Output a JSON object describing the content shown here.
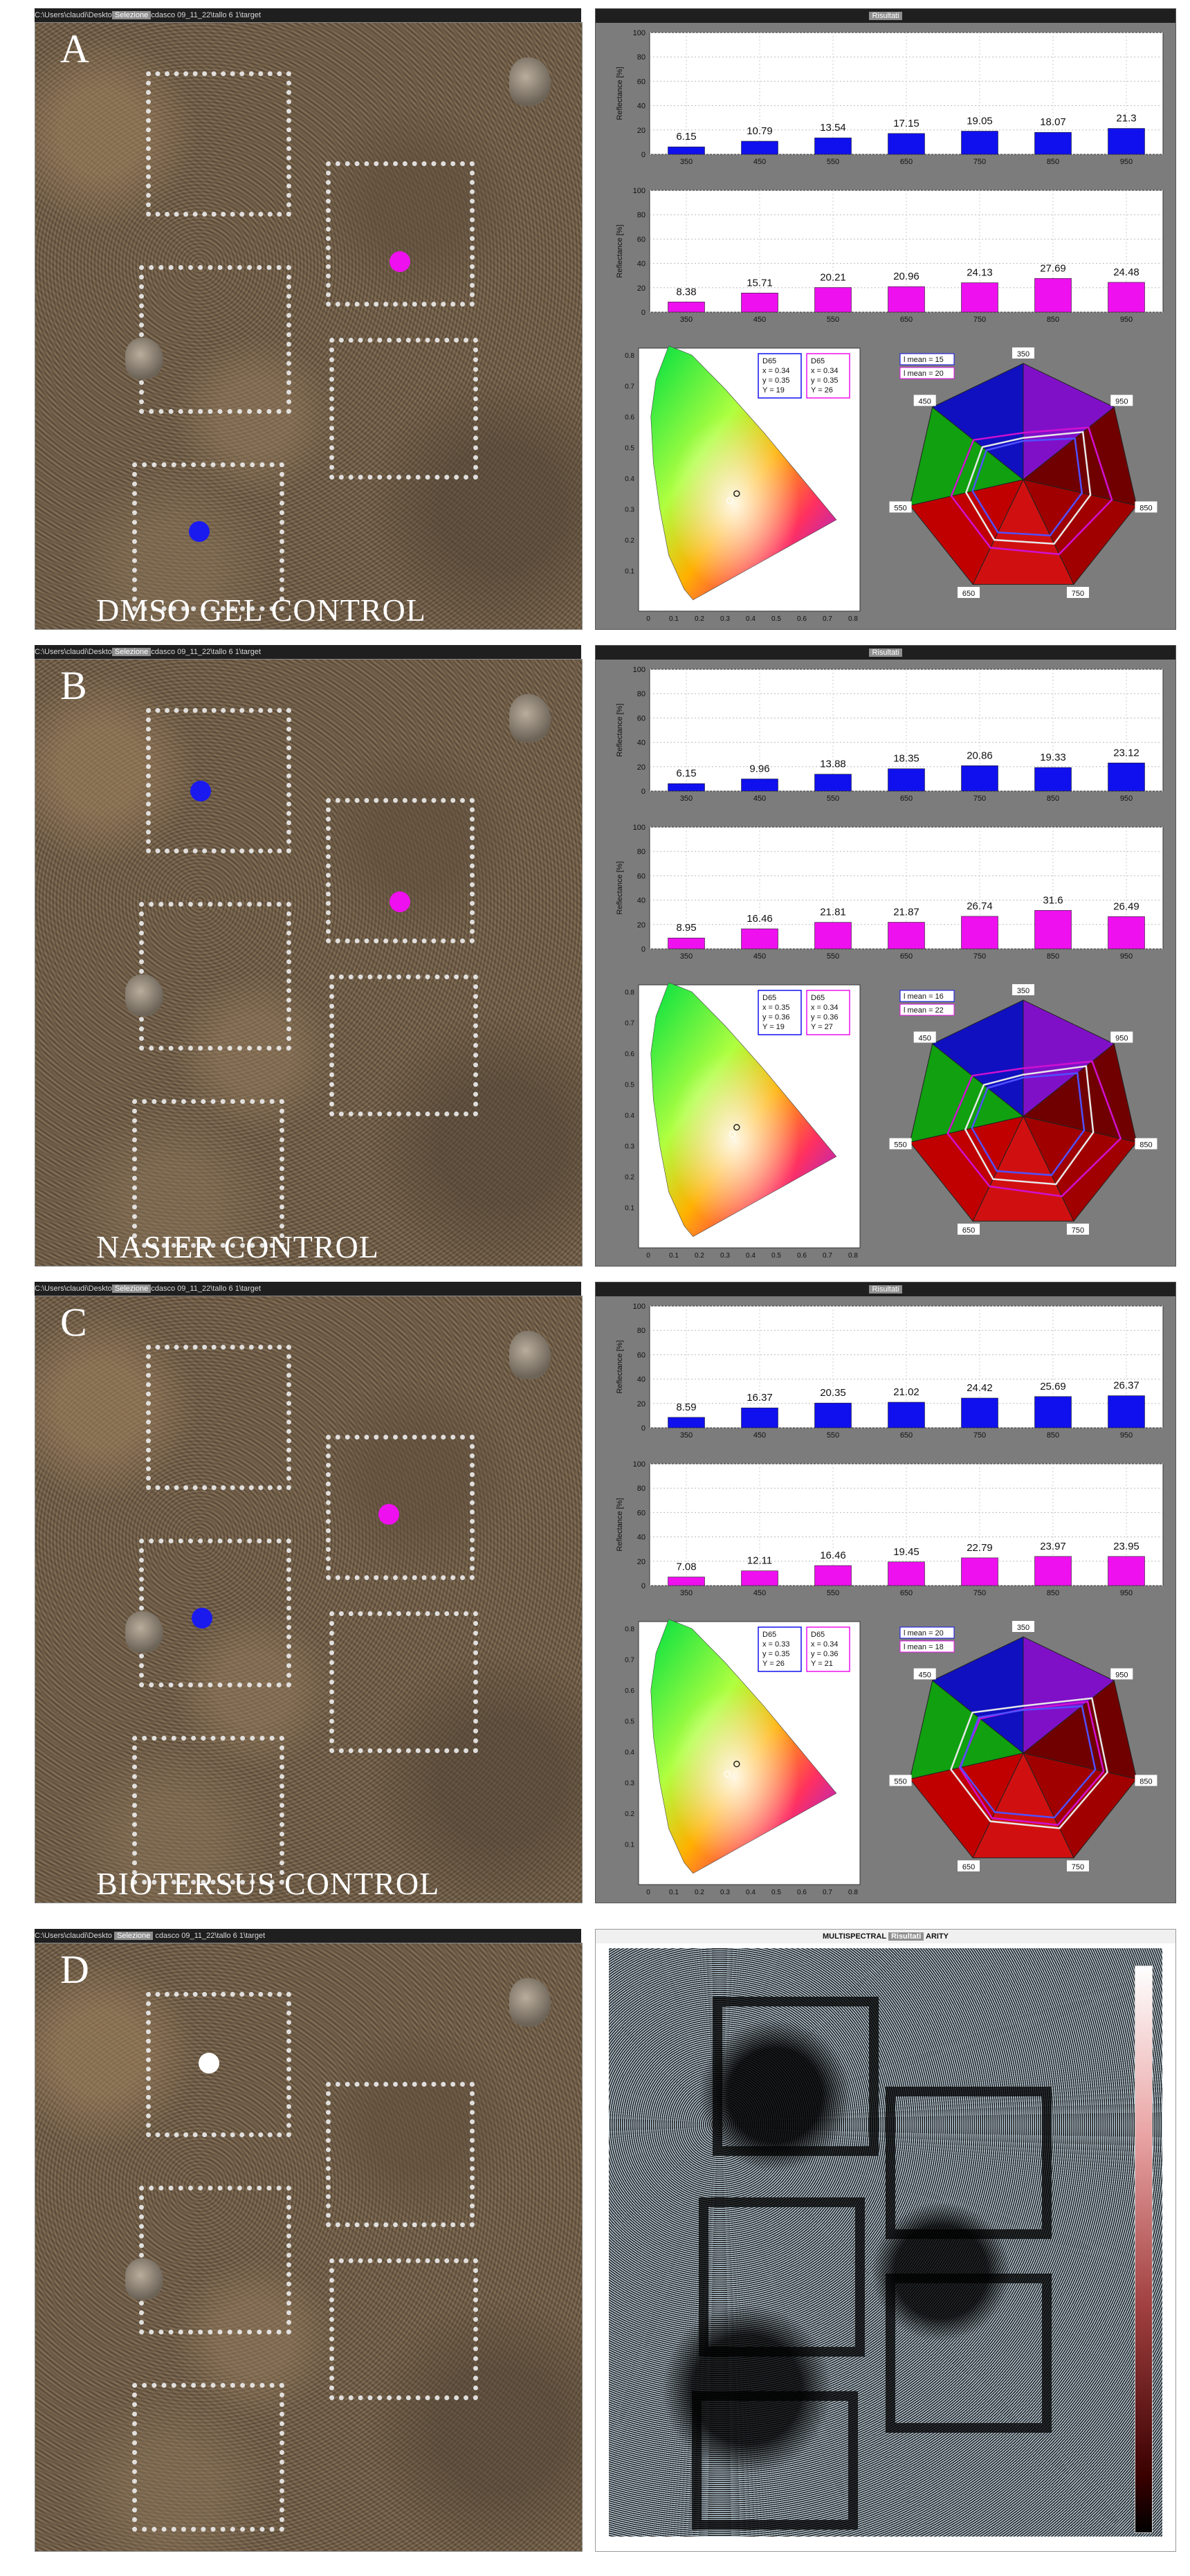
{
  "window_title_prefix": "C:\\Users\\claudi\\Deskto",
  "window_title_highlight": "Selezione",
  "window_title_suffix": "cdasco 09_11_22\\tallo 6 1\\target",
  "results_title": "Risultati",
  "band_labels": [
    "350",
    "450",
    "550",
    "650",
    "750",
    "850",
    "950"
  ],
  "chart_data": [
    {
      "type": "bar",
      "panel": "A",
      "color": "#1010ee",
      "categories": [
        "350",
        "450",
        "550",
        "650",
        "750",
        "850",
        "950"
      ],
      "values": [
        6.15,
        10.79,
        13.54,
        17.15,
        19.05,
        18.07,
        21.3
      ],
      "ylabel": "Reflectance [%]",
      "ylim": [
        0,
        100
      ],
      "yticks": [
        "0",
        "20",
        "40",
        "60",
        "80",
        "100"
      ],
      "grid": true
    },
    {
      "type": "bar",
      "panel": "A",
      "color": "#ee10ee",
      "categories": [
        "350",
        "450",
        "550",
        "650",
        "750",
        "850",
        "950"
      ],
      "values": [
        8.38,
        15.71,
        20.21,
        20.96,
        24.13,
        27.69,
        24.48
      ],
      "ylabel": "Reflectance [%]",
      "ylim": [
        0,
        100
      ],
      "yticks": [
        "0",
        "20",
        "40",
        "60",
        "80",
        "100"
      ],
      "grid": true
    },
    {
      "type": "bar",
      "panel": "B",
      "color": "#1010ee",
      "categories": [
        "350",
        "450",
        "550",
        "650",
        "750",
        "850",
        "950"
      ],
      "values": [
        6.15,
        9.96,
        13.88,
        18.35,
        20.86,
        19.33,
        23.12
      ],
      "ylabel": "Reflectance [%]",
      "ylim": [
        0,
        100
      ],
      "yticks": [
        "0",
        "20",
        "40",
        "60",
        "80",
        "100"
      ],
      "grid": true
    },
    {
      "type": "bar",
      "panel": "B",
      "color": "#ee10ee",
      "categories": [
        "350",
        "450",
        "550",
        "650",
        "750",
        "850",
        "950"
      ],
      "values": [
        8.95,
        16.46,
        21.81,
        21.87,
        26.74,
        31.6,
        26.49
      ],
      "ylabel": "Reflectance [%]",
      "ylim": [
        0,
        100
      ],
      "yticks": [
        "0",
        "20",
        "40",
        "60",
        "80",
        "100"
      ],
      "grid": true
    },
    {
      "type": "bar",
      "panel": "C",
      "color": "#1010ee",
      "categories": [
        "350",
        "450",
        "550",
        "650",
        "750",
        "850",
        "950"
      ],
      "values": [
        8.59,
        16.37,
        20.35,
        21.02,
        24.42,
        25.69,
        26.37
      ],
      "ylabel": "Reflectance [%]",
      "ylim": [
        0,
        100
      ],
      "yticks": [
        "0",
        "20",
        "40",
        "60",
        "80",
        "100"
      ],
      "grid": true
    },
    {
      "type": "bar",
      "panel": "C",
      "color": "#ee10ee",
      "categories": [
        "350",
        "450",
        "550",
        "650",
        "750",
        "850",
        "950"
      ],
      "values": [
        7.08,
        12.11,
        16.46,
        19.45,
        22.79,
        23.97,
        23.95
      ],
      "ylabel": "Reflectance [%]",
      "ylim": [
        0,
        100
      ],
      "yticks": [
        "0",
        "20",
        "40",
        "60",
        "80",
        "100"
      ],
      "grid": true
    }
  ],
  "chromaticity": {
    "xticks": [
      "0",
      "0.1",
      "0.2",
      "0.3",
      "0.4",
      "0.5",
      "0.6",
      "0.7",
      "0.8"
    ],
    "yticks": [
      "0",
      "0.1",
      "0.2",
      "0.3",
      "0.4",
      "0.5",
      "0.6",
      "0.7",
      "0.8"
    ]
  },
  "panels": [
    {
      "letter": "A",
      "caption": "DMSO GEL  CONTROL",
      "d65_blue": [
        "D65",
        "x = 0.34",
        "y = 0.35",
        "Y = 19"
      ],
      "d65_pink": [
        "D65",
        "x = 0.34",
        "y = 0.35",
        "Y = 26"
      ],
      "mean_blue": "l mean = 15",
      "mean_pink": "l mean = 20",
      "point_blue": [
        0.34,
        0.35
      ],
      "point_pink": [
        0.34,
        0.35
      ]
    },
    {
      "letter": "B",
      "caption": "NASIER   CONTROL",
      "d65_blue": [
        "D65",
        "x = 0.35",
        "y = 0.36",
        "Y = 19"
      ],
      "d65_pink": [
        "D65",
        "x = 0.34",
        "y = 0.36",
        "Y = 27"
      ],
      "mean_blue": "l mean = 16",
      "mean_pink": "l mean = 22",
      "point_blue": [
        0.35,
        0.36
      ],
      "point_pink": [
        0.34,
        0.36
      ]
    },
    {
      "letter": "C",
      "caption": "BIOTERSUS    CONTROL",
      "d65_blue": [
        "D65",
        "x = 0.33",
        "y = 0.35",
        "Y = 26"
      ],
      "d65_pink": [
        "D65",
        "x = 0.34",
        "y = 0.36",
        "Y = 21"
      ],
      "mean_blue": "l mean = 20",
      "mean_pink": "l mean = 18",
      "point_blue": [
        0.33,
        0.35
      ],
      "point_pink": [
        0.34,
        0.36
      ]
    }
  ],
  "panel_d": {
    "letter": "D",
    "title_prefix": "MULTISPECTRAL",
    "title_highlight": "Risultati",
    "title_suffix": "ARITY"
  }
}
